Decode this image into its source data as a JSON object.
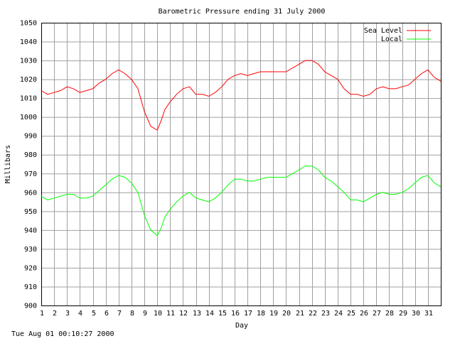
{
  "footer_timestamp": "Tue Aug 01 00:10:27 2000",
  "chart_data": {
    "type": "line",
    "title": "Barometric Pressure ending 31 July 2000",
    "xlabel": "Day",
    "ylabel": "Millibars",
    "xlim": [
      1,
      32
    ],
    "ylim": [
      900,
      1050
    ],
    "yticks": [
      900,
      910,
      920,
      930,
      940,
      950,
      960,
      970,
      980,
      990,
      1000,
      1010,
      1020,
      1030,
      1040,
      1050
    ],
    "xticks": [
      1,
      2,
      3,
      4,
      5,
      6,
      7,
      8,
      9,
      10,
      11,
      12,
      13,
      14,
      15,
      16,
      17,
      18,
      19,
      20,
      21,
      22,
      23,
      24,
      25,
      26,
      27,
      28,
      29,
      30,
      31
    ],
    "grid": true,
    "legend_position": "top-right",
    "series": [
      {
        "name": "Sea Level",
        "color": "#ff0000",
        "x": [
          1,
          1.5,
          2,
          2.5,
          3,
          3.5,
          4,
          4.5,
          5,
          5.5,
          6,
          6.5,
          7,
          7.5,
          8,
          8.5,
          9,
          9.5,
          10,
          10.3,
          10.6,
          11,
          11.5,
          12,
          12.5,
          13,
          13.5,
          14,
          14.5,
          15,
          15.5,
          16,
          16.5,
          17,
          17.5,
          18,
          18.5,
          19,
          19.5,
          20,
          20.5,
          21,
          21.5,
          22,
          22.5,
          23,
          23.5,
          24,
          24.5,
          25,
          25.5,
          26,
          26.5,
          27,
          27.5,
          28,
          28.5,
          29,
          29.5,
          30,
          30.5,
          31,
          31.5,
          32
        ],
        "values": [
          1014,
          1012,
          1013,
          1014,
          1016,
          1015,
          1013,
          1014,
          1015,
          1018,
          1020,
          1023,
          1025,
          1023,
          1020,
          1015,
          1003,
          995,
          993,
          998,
          1004,
          1008,
          1012,
          1015,
          1016,
          1012,
          1012,
          1011,
          1013,
          1016,
          1020,
          1022,
          1023,
          1022,
          1023,
          1024,
          1024,
          1024,
          1024,
          1024,
          1026,
          1028,
          1030,
          1030,
          1028,
          1024,
          1022,
          1020,
          1015,
          1012,
          1012,
          1011,
          1012,
          1015,
          1016,
          1015,
          1015,
          1016,
          1017,
          1020,
          1023,
          1025,
          1021,
          1019
        ]
      },
      {
        "name": "Local",
        "color": "#00ff00",
        "x": [
          1,
          1.5,
          2,
          2.5,
          3,
          3.5,
          4,
          4.5,
          5,
          5.5,
          6,
          6.5,
          7,
          7.5,
          8,
          8.5,
          9,
          9.5,
          10,
          10.3,
          10.6,
          11,
          11.5,
          12,
          12.5,
          13,
          13.5,
          14,
          14.5,
          15,
          15.5,
          16,
          16.5,
          17,
          17.5,
          18,
          18.5,
          19,
          19.5,
          20,
          20.5,
          21,
          21.5,
          22,
          22.5,
          23,
          23.5,
          24,
          24.5,
          25,
          25.5,
          26,
          26.5,
          27,
          27.5,
          28,
          28.5,
          29,
          29.5,
          30,
          30.5,
          31,
          31.5,
          32
        ],
        "values": [
          958,
          956,
          957,
          958,
          959,
          959,
          957,
          957,
          958,
          961,
          964,
          967,
          969,
          968,
          965,
          960,
          948,
          940,
          937,
          941,
          947,
          951,
          955,
          958,
          960,
          957,
          956,
          955,
          957,
          960,
          964,
          967,
          967,
          966,
          966,
          967,
          968,
          968,
          968,
          968,
          970,
          972,
          974,
          974,
          972,
          968,
          966,
          963,
          960,
          956,
          956,
          955,
          957,
          959,
          960,
          959,
          959,
          960,
          962,
          965,
          968,
          969,
          965,
          963
        ]
      }
    ]
  }
}
